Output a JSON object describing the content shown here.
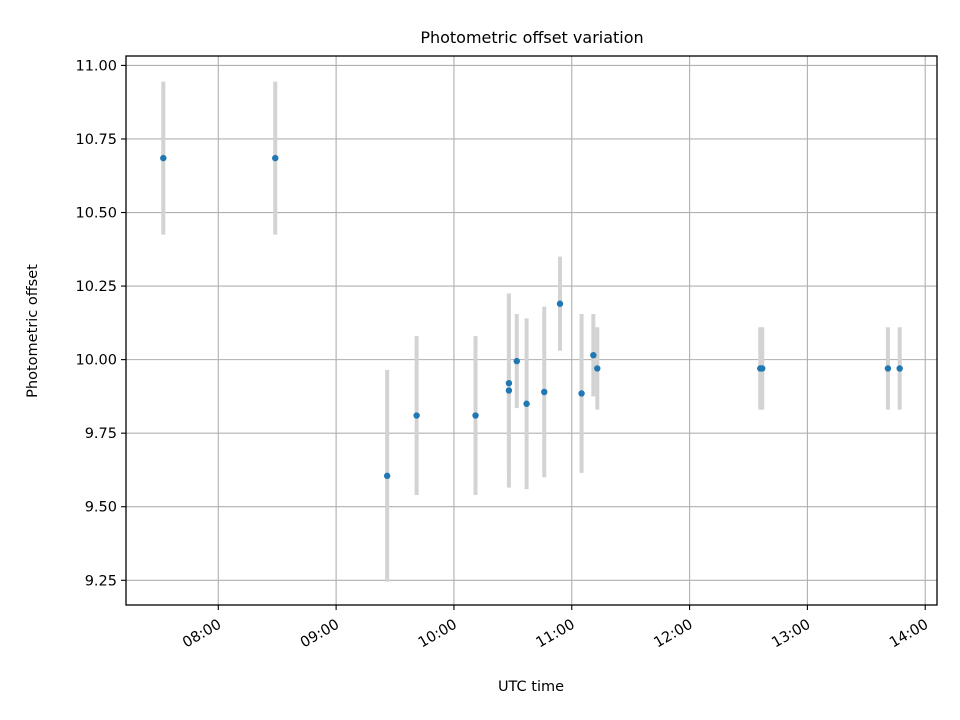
{
  "chart_data": {
    "type": "scatter",
    "title": "Photometric offset variation",
    "xlabel": "UTC time",
    "ylabel": "Photometric offset",
    "xlim": [
      "07:13",
      "14:06"
    ],
    "ylim": [
      9.166,
      11.032
    ],
    "grid": true,
    "x_ticks": [
      "08:00",
      "09:00",
      "10:00",
      "11:00",
      "12:00",
      "13:00",
      "14:00"
    ],
    "y_ticks": [
      "9.25",
      "9.50",
      "9.75",
      "10.00",
      "10.25",
      "10.50",
      "10.75",
      "11.00"
    ],
    "points": [
      {
        "x": "07:32",
        "y": 10.685,
        "err": 0.26
      },
      {
        "x": "08:29",
        "y": 10.685,
        "err": 0.26
      },
      {
        "x": "09:26",
        "y": 9.605,
        "err": 0.36
      },
      {
        "x": "09:41",
        "y": 9.81,
        "err": 0.27
      },
      {
        "x": "10:11",
        "y": 9.81,
        "err": 0.27
      },
      {
        "x": "10:28",
        "y": 9.92,
        "err": 0.3
      },
      {
        "x": "10:28",
        "y": 9.895,
        "err": 0.33
      },
      {
        "x": "10:32",
        "y": 9.995,
        "err": 0.16
      },
      {
        "x": "10:37",
        "y": 9.85,
        "err": 0.29
      },
      {
        "x": "10:46",
        "y": 9.89,
        "err": 0.29
      },
      {
        "x": "10:54",
        "y": 10.19,
        "err": 0.16
      },
      {
        "x": "11:05",
        "y": 9.885,
        "err": 0.27
      },
      {
        "x": "11:11",
        "y": 10.015,
        "err": 0.14
      },
      {
        "x": "11:13",
        "y": 9.97,
        "err": 0.14
      },
      {
        "x": "12:36",
        "y": 9.97,
        "err": 0.14
      },
      {
        "x": "12:37",
        "y": 9.97,
        "err": 0.14
      },
      {
        "x": "13:41",
        "y": 9.97,
        "err": 0.14
      },
      {
        "x": "13:47",
        "y": 9.97,
        "err": 0.14
      }
    ],
    "marker_color": "#1f77b4",
    "errorbar_color": "#d3d3d3",
    "grid_color": "#b0b0b0"
  }
}
